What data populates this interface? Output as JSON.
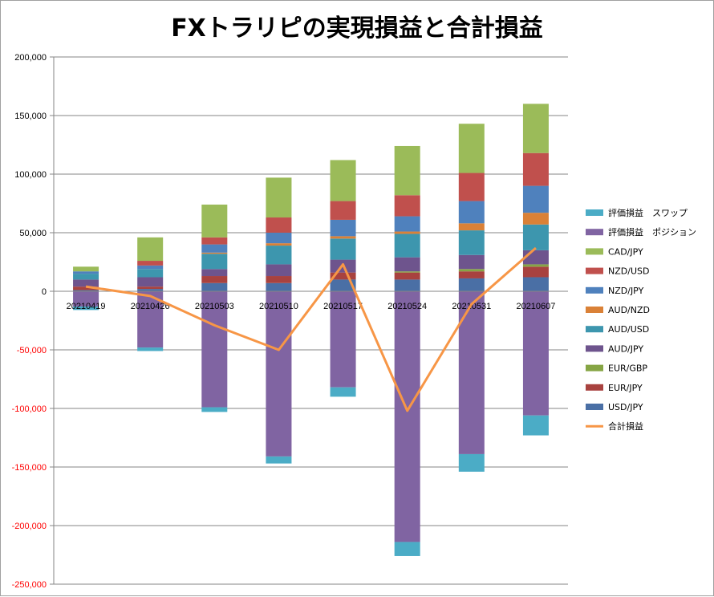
{
  "chart_data": {
    "type": "bar",
    "stacked": true,
    "title": "FXトラリピの実現損益と合計損益",
    "categories": [
      "20210419",
      "20210426",
      "20210503",
      "20210510",
      "20210517",
      "20210524",
      "20210531",
      "20210607"
    ],
    "ylim": [
      -250000,
      200000
    ],
    "yticks": [
      200000,
      150000,
      100000,
      50000,
      0,
      -50000,
      -100000,
      -150000,
      -200000,
      -250000
    ],
    "ytick_labels": [
      "200,000",
      "150,000",
      "100,000",
      "50,000",
      "0",
      "-50,000",
      "-100,000",
      "-150,000",
      "-200,000",
      "-250,000"
    ],
    "positive_tick_color": "#000000",
    "negative_tick_color": "#ff0000",
    "grid": true,
    "legend_position": "right",
    "series": [
      {
        "name": "USD/JPY",
        "color": "#4a6fa5",
        "values": [
          1000,
          2000,
          7000,
          7000,
          10000,
          10000,
          11000,
          12000
        ]
      },
      {
        "name": "EUR/JPY",
        "color": "#a8423f",
        "values": [
          3000,
          2000,
          6000,
          6000,
          6000,
          6000,
          6000,
          9000
        ]
      },
      {
        "name": "EUR/GBP",
        "color": "#86a544",
        "values": [
          0,
          0,
          0,
          0,
          0,
          1000,
          2000,
          2000
        ]
      },
      {
        "name": "AUD/JPY",
        "color": "#6e548d",
        "values": [
          6000,
          8000,
          6000,
          10000,
          11000,
          12000,
          12000,
          12000
        ]
      },
      {
        "name": "AUD/USD",
        "color": "#3d96ae",
        "values": [
          5000,
          7000,
          13000,
          16000,
          18000,
          20000,
          21000,
          22000
        ]
      },
      {
        "name": "AUD/NZD",
        "color": "#da8137",
        "values": [
          0,
          0,
          1000,
          2000,
          2000,
          2000,
          6000,
          10000
        ]
      },
      {
        "name": "NZD/JPY",
        "color": "#4f81bd",
        "values": [
          2000,
          3000,
          7000,
          9000,
          14000,
          13000,
          19000,
          23000
        ]
      },
      {
        "name": "NZD/USD",
        "color": "#c0504d",
        "values": [
          0,
          4000,
          6000,
          13000,
          16000,
          18000,
          24000,
          28000
        ]
      },
      {
        "name": "CAD/JPY",
        "color": "#9bbb59",
        "values": [
          4000,
          20000,
          28000,
          34000,
          35000,
          42000,
          42000,
          42000
        ]
      },
      {
        "name": "評価損益　ポジション",
        "color": "#8064a2",
        "values": [
          -13000,
          -48000,
          -99000,
          -141000,
          -82000,
          -214000,
          -139000,
          -106000
        ]
      },
      {
        "name": "評価損益　スワップ",
        "color": "#4bacc6",
        "values": [
          -3000,
          -3000,
          -4000,
          -6000,
          -8000,
          -12000,
          -15000,
          -17000
        ]
      }
    ],
    "line": {
      "name": "合計損益",
      "color": "#f79646",
      "values": [
        4000,
        -4000,
        -29000,
        -50000,
        23000,
        -102000,
        -11000,
        37000
      ]
    },
    "legend_order": [
      "評価損益　スワップ",
      "評価損益　ポジション",
      "CAD/JPY",
      "NZD/USD",
      "NZD/JPY",
      "AUD/NZD",
      "AUD/USD",
      "AUD/JPY",
      "EUR/GBP",
      "EUR/JPY",
      "USD/JPY",
      "合計損益"
    ]
  }
}
